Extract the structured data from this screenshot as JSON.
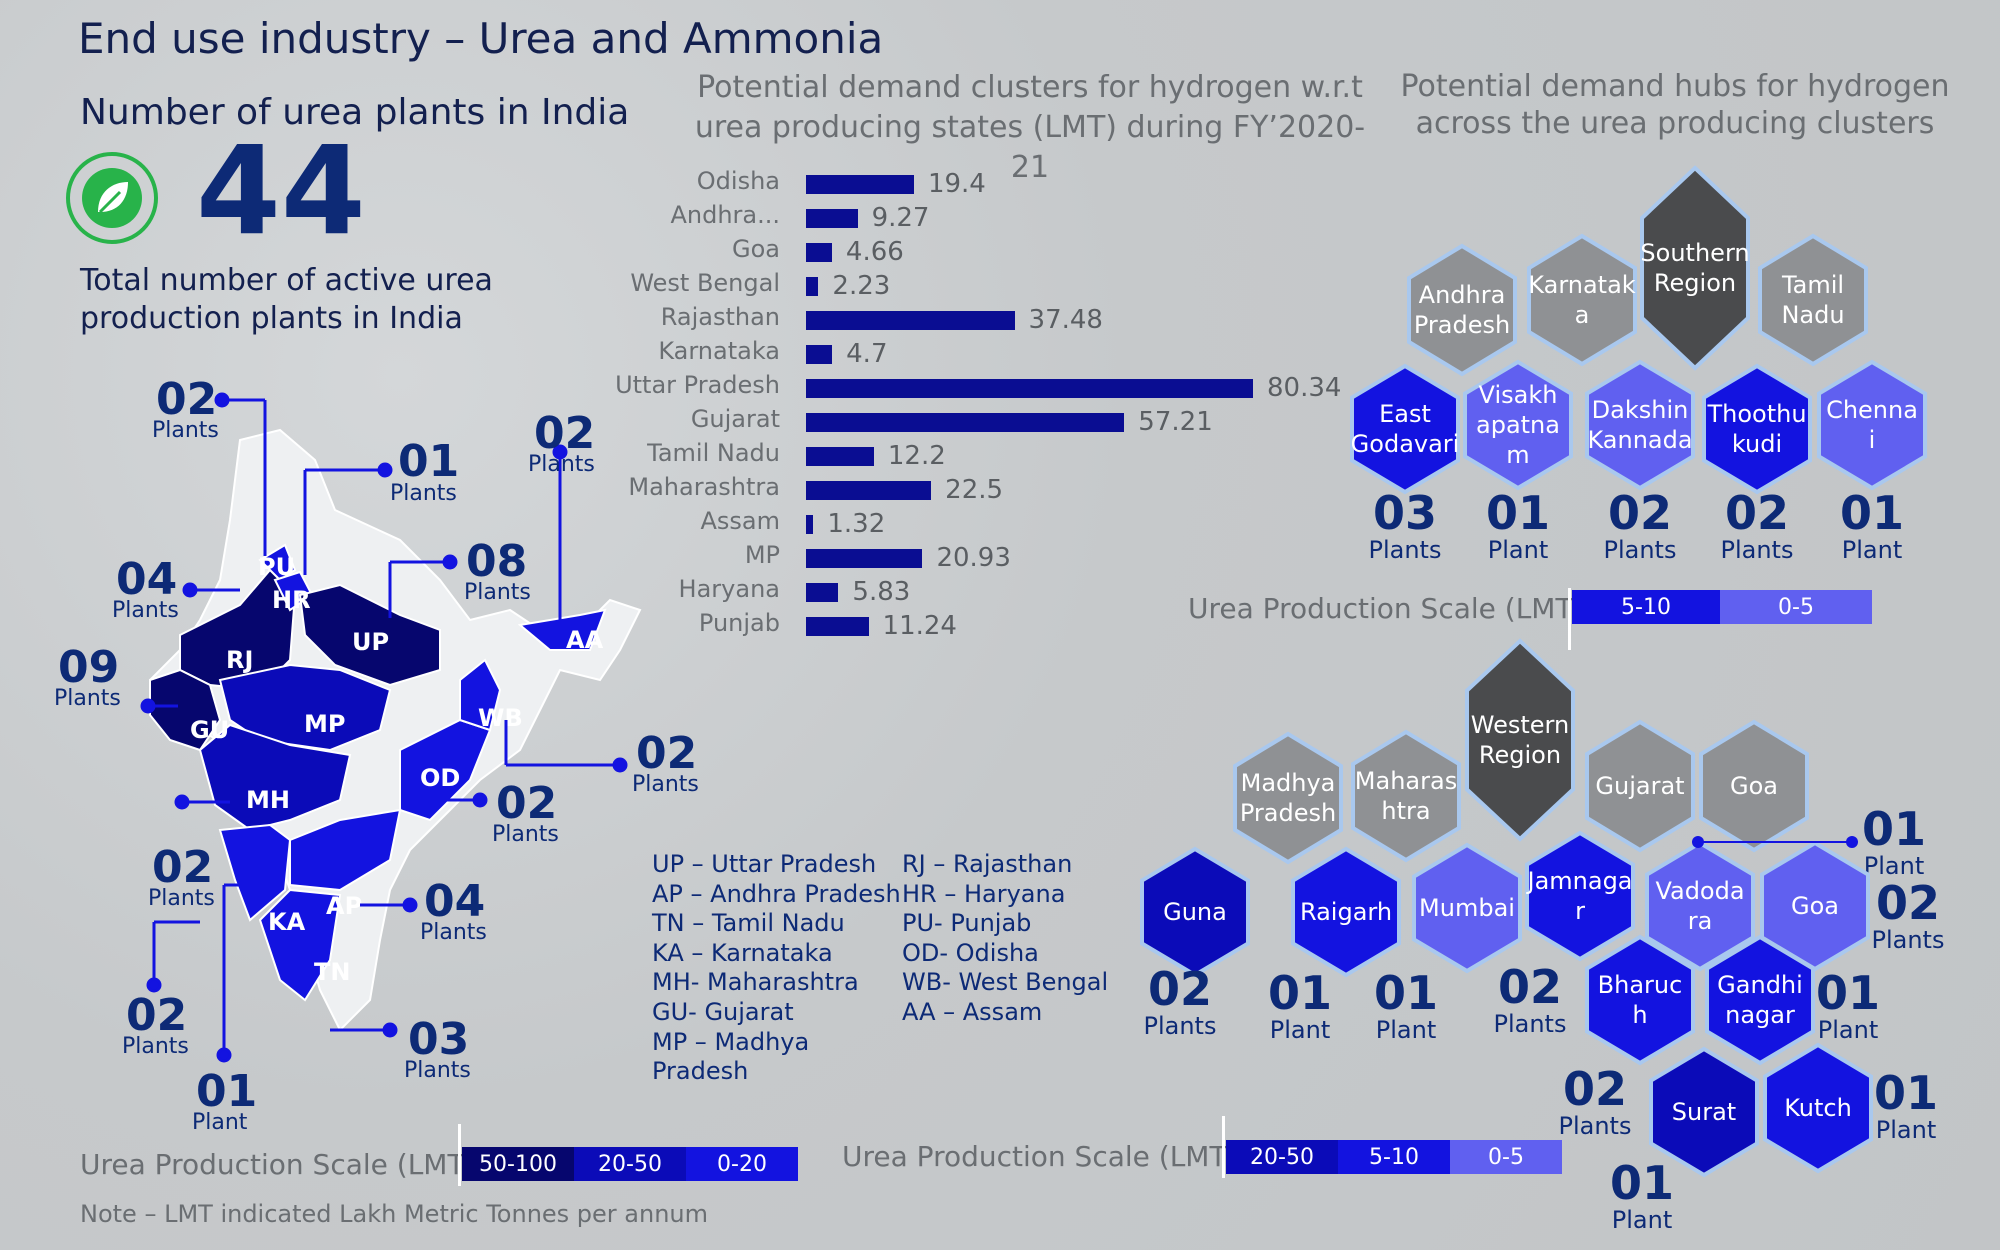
{
  "header": {
    "title": "End use industry – Urea and Ammonia",
    "subtitle": "Number of urea plants in India",
    "total_count": "44",
    "total_caption": "Total number of active urea production plants in India"
  },
  "bar_chart_title": "Potential demand clusters for hydrogen w.r.t urea producing states (LMT) during FY’2020-21",
  "hub_chart_title": "Potential demand hubs for hydrogen across the urea producing clusters",
  "chart_data": {
    "type": "bar",
    "orientation": "horizontal",
    "categories": [
      "Odisha",
      "Andhra...",
      "Goa",
      "West Bengal",
      "Rajasthan",
      "Karnataka",
      "Uttar Pradesh",
      "Gujarat",
      "Tamil Nadu",
      "Maharashtra",
      "Assam",
      "MP",
      "Haryana",
      "Punjab"
    ],
    "values": [
      19.4,
      9.27,
      4.66,
      2.23,
      37.48,
      4.7,
      80.34,
      57.21,
      12.2,
      22.5,
      1.32,
      20.93,
      5.83,
      11.24
    ],
    "value_labels": [
      "19.4",
      "9.27",
      "4.66",
      "2.23",
      "37.48",
      "4.7",
      "80.34",
      "57.21",
      "12.2",
      "22.5",
      "1.32",
      "20.93",
      "5.83",
      "11.24"
    ],
    "xlim": [
      0,
      85
    ],
    "bar_color": "#0a0d92"
  },
  "map": {
    "states": [
      {
        "abbr": "PU"
      },
      {
        "abbr": "HR"
      },
      {
        "abbr": "RJ"
      },
      {
        "abbr": "UP"
      },
      {
        "abbr": "GU"
      },
      {
        "abbr": "MP"
      },
      {
        "abbr": "MH"
      },
      {
        "abbr": "OD"
      },
      {
        "abbr": "WB"
      },
      {
        "abbr": "AA"
      },
      {
        "abbr": "KA"
      },
      {
        "abbr": "AP"
      },
      {
        "abbr": "TN"
      }
    ],
    "callouts": [
      {
        "count": "02",
        "label": "Plants"
      },
      {
        "count": "01",
        "label": "Plants"
      },
      {
        "count": "02",
        "label": "Plants"
      },
      {
        "count": "08",
        "label": "Plants"
      },
      {
        "count": "04",
        "label": "Plants"
      },
      {
        "count": "09",
        "label": "Plants"
      },
      {
        "count": "02",
        "label": "Plants"
      },
      {
        "count": "02",
        "label": "Plants"
      },
      {
        "count": "02",
        "label": "Plants"
      },
      {
        "count": "04",
        "label": "Plants"
      },
      {
        "count": "02",
        "label": "Plants"
      },
      {
        "count": "03",
        "label": "Plants"
      },
      {
        "count": "01",
        "label": "Plant"
      }
    ]
  },
  "abbreviations": {
    "left": [
      "UP – Uttar Pradesh",
      "AP – Andhra Pradesh",
      "TN – Tamil Nadu",
      "KA – Karnataka",
      "MH- Maharashtra",
      "GU- Gujarat",
      "MP – Madhya",
      "Pradesh"
    ],
    "right": [
      "RJ – Rajasthan",
      "HR – Haryana",
      "PU- Punjab",
      "OD- Odisha",
      "WB- West Bengal",
      "AA – Assam"
    ]
  },
  "southern": {
    "region": "Southern Region",
    "states": [
      "Andhra Pradesh",
      "Karnatak a",
      "Tamil Nadu"
    ],
    "hubs": [
      {
        "name": "East Godavari",
        "count": "03",
        "label": "Plants",
        "color": "#1313e0"
      },
      {
        "name": "Visakh apatna m",
        "count": "01",
        "label": "Plant",
        "color": "#6060f0"
      },
      {
        "name": "Dakshin Kannada",
        "count": "02",
        "label": "Plants",
        "color": "#6060f0"
      },
      {
        "name": "Thoothu kudi",
        "count": "02",
        "label": "Plants",
        "color": "#1313e0"
      },
      {
        "name": "Chenna i",
        "count": "01",
        "label": "Plant",
        "color": "#6060f0"
      }
    ],
    "scale_label": "Urea Production Scale (LMT)",
    "scale": [
      {
        "label": "5-10",
        "color": "#1313e0"
      },
      {
        "label": "0-5",
        "color": "#6060f0"
      }
    ]
  },
  "western": {
    "region": "Western Region",
    "states": [
      "Madhya Pradesh",
      "Maharas htra",
      "Gujarat",
      "Goa"
    ],
    "hubs": [
      {
        "name": "Guna",
        "count": "02",
        "label": "Plants",
        "color": "#0b0bb8"
      },
      {
        "name": "Raigarh",
        "count": "01",
        "label": "Plant",
        "color": "#1313e0"
      },
      {
        "name": "Mumbai",
        "count": "01",
        "label": "Plant",
        "color": "#6060f0"
      },
      {
        "name": "Jamnaga r",
        "count": "02",
        "label": "Plants",
        "color": "#1313e0"
      },
      {
        "name": "Vadoda ra",
        "count": "01",
        "label": "Plant",
        "color": "#6060f0"
      },
      {
        "name": "Goa",
        "count": "02",
        "label": "Plants",
        "color": "#6060f0"
      },
      {
        "name": "Bharuc h",
        "count": "02",
        "label": "Plants",
        "color": "#1313e0"
      },
      {
        "name": "Gandhi nagar",
        "count": "01",
        "label": "Plant",
        "color": "#1313e0"
      },
      {
        "name": "Surat",
        "count": "01",
        "label": "Plant",
        "color": "#0b0bb8"
      },
      {
        "name": "Kutch",
        "count": "01",
        "label": "Plant",
        "color": "#1313e0"
      }
    ],
    "scale_label": "Urea Production Scale (LMT)",
    "scale": [
      {
        "label": "20-50",
        "color": "#0b0bb8"
      },
      {
        "label": "5-10",
        "color": "#1313e0"
      },
      {
        "label": "0-5",
        "color": "#6060f0"
      }
    ]
  },
  "map_scale": {
    "label": "Urea Production Scale (LMT)",
    "segments": [
      {
        "label": "50-100",
        "color": "#06066e"
      },
      {
        "label": "20-50",
        "color": "#0b0bb8"
      },
      {
        "label": "0-20",
        "color": "#1313e0"
      }
    ]
  },
  "note": "Note – LMT indicated Lakh Metric Tonnes per annum"
}
